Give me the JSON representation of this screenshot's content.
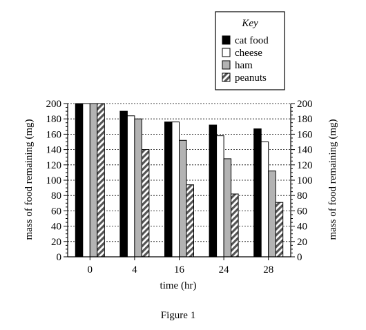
{
  "chart_data": {
    "type": "bar",
    "categories": [
      "0",
      "4",
      "16",
      "24",
      "28"
    ],
    "series": [
      {
        "name": "cat food",
        "pattern": "solid-black",
        "color": "#000000",
        "values": [
          200,
          190,
          176,
          172,
          167
        ]
      },
      {
        "name": "cheese",
        "pattern": "white",
        "color": "#ffffff",
        "values": [
          200,
          184,
          176,
          158,
          150
        ]
      },
      {
        "name": "ham",
        "pattern": "grey",
        "color": "#b3b3b3",
        "values": [
          200,
          180,
          152,
          128,
          112
        ]
      },
      {
        "name": "peanuts",
        "pattern": "diagonal-hatch",
        "color": "#555555",
        "values": [
          200,
          140,
          94,
          82,
          71
        ]
      }
    ],
    "xlabel": "time (hr)",
    "ylabel_left": "mass of food remaining (mg)",
    "ylabel_right": "mass of food remaining (mg)",
    "ylim": [
      0,
      200
    ],
    "yticks": [
      0,
      20,
      40,
      60,
      80,
      100,
      120,
      140,
      160,
      180,
      200
    ],
    "grid": "horizontal dashed",
    "legend_title": "Key",
    "legend_position": "top-right, above plot",
    "caption": "Figure 1"
  }
}
